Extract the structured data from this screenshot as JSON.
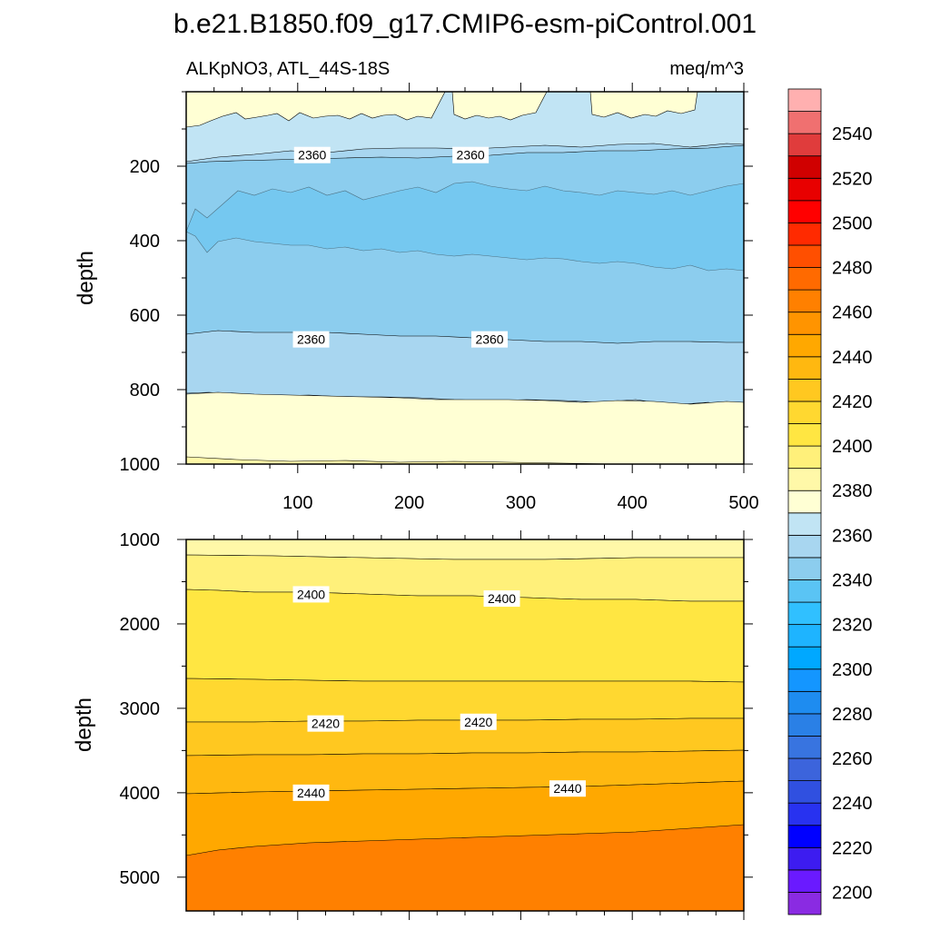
{
  "chart_data": {
    "type": "heatmap",
    "title": "b.e21.B1850.f09_g17.CMIP6-esm-piControl.001",
    "subtitle_left": "ALKpNO3, ATL_44S-18S",
    "subtitle_right": "meq/m^3",
    "x_ticks": [
      100,
      200,
      300,
      400,
      500
    ],
    "x_range": [
      0,
      500
    ],
    "panels": [
      {
        "name": "upper",
        "ylabel": "depth",
        "y_range": [
          0,
          1000
        ],
        "y_ticks": [
          200,
          400,
          600,
          800,
          1000
        ],
        "y_inverted": true,
        "contour_labels": [
          {
            "text": "2360",
            "x": 113,
            "y": 170
          },
          {
            "text": "2360",
            "x": 255,
            "y": 170
          },
          {
            "text": "2360",
            "x": 112,
            "y": 665
          },
          {
            "text": "2360",
            "x": 272,
            "y": 665
          }
        ]
      },
      {
        "name": "lower",
        "ylabel": "depth",
        "y_range": [
          1000,
          5400
        ],
        "y_ticks": [
          1000,
          2000,
          3000,
          4000,
          5000
        ],
        "y_inverted": true,
        "contour_labels": [
          {
            "text": "2400",
            "x": 112,
            "y": 1650
          },
          {
            "text": "2400",
            "x": 283,
            "y": 1700
          },
          {
            "text": "2420",
            "x": 125,
            "y": 3180
          },
          {
            "text": "2420",
            "x": 262,
            "y": 3160
          },
          {
            "text": "2440",
            "x": 112,
            "y": 4000
          },
          {
            "text": "2440",
            "x": 342,
            "y": 3950
          }
        ]
      }
    ],
    "colorbar": {
      "levels": [
        2200,
        2210,
        2220,
        2230,
        2240,
        2250,
        2260,
        2270,
        2280,
        2290,
        2300,
        2310,
        2320,
        2330,
        2340,
        2350,
        2360,
        2370,
        2380,
        2390,
        2400,
        2410,
        2420,
        2430,
        2440,
        2450,
        2460,
        2470,
        2480,
        2490,
        2500,
        2510,
        2520,
        2530,
        2540,
        2550
      ],
      "labels": [
        2200,
        2220,
        2240,
        2260,
        2280,
        2300,
        2320,
        2340,
        2360,
        2380,
        2400,
        2420,
        2440,
        2460,
        2480,
        2500,
        2520,
        2540
      ],
      "colors": [
        "#8a2be2",
        "#6a1aff",
        "#3d1cf0",
        "#0000ff",
        "#2832f0",
        "#3050e0",
        "#3c64dc",
        "#3874e0",
        "#2a80e6",
        "#1e8cf0",
        "#1496ff",
        "#00a8ff",
        "#1eb4ff",
        "#30c0ff",
        "#5ac4f4",
        "#8ccdee",
        "#a8d6f0",
        "#c1e4f4",
        "#ffffd4",
        "#fff8a8",
        "#fff07a",
        "#ffe642",
        "#ffd830",
        "#ffc820",
        "#ffb810",
        "#ffa800",
        "#ff9400",
        "#ff8000",
        "#ff6a00",
        "#ff4f00",
        "#ff2a00",
        "#ff0000",
        "#e80000",
        "#d00000",
        "#e03c3c",
        "#f07070",
        "#ffb0b0"
      ]
    }
  }
}
